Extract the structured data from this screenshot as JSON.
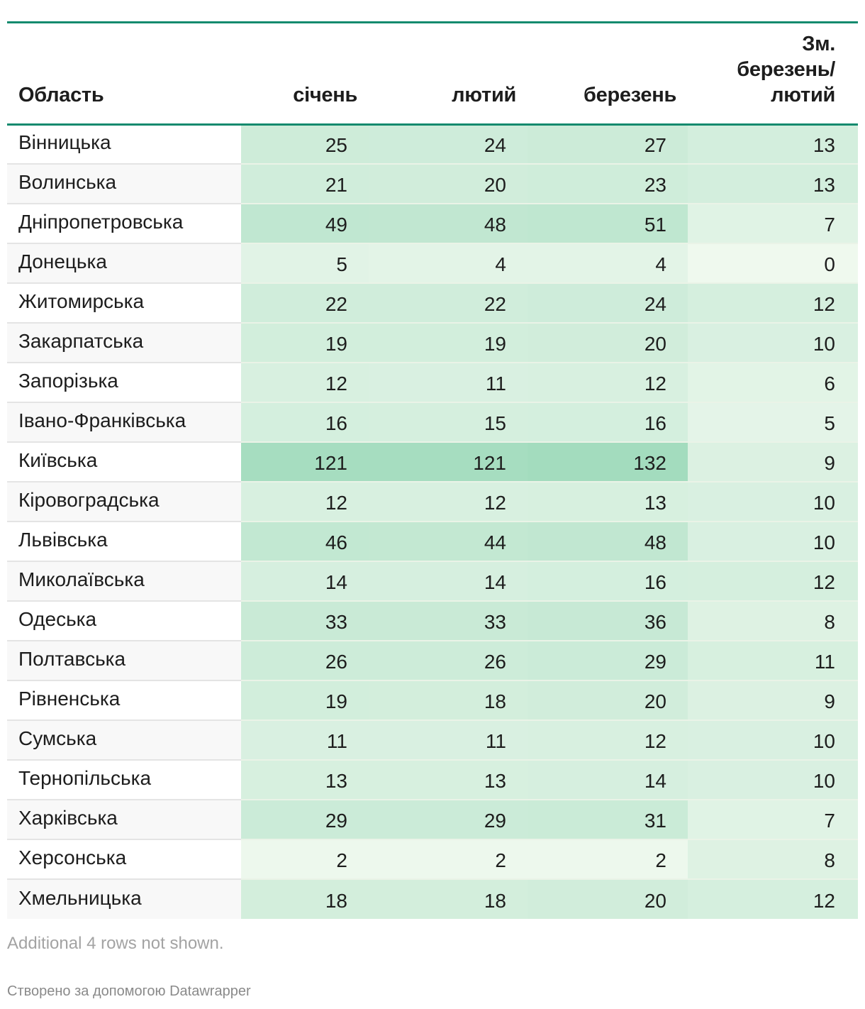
{
  "chart_data": {
    "type": "table",
    "headers": {
      "name": "Область",
      "jan": "січень",
      "feb": "лютий",
      "mar": "березень",
      "change_lines": [
        "Зм.",
        "березень/",
        "лютий"
      ]
    },
    "rows": [
      {
        "name": "Вінницька",
        "jan": "25",
        "feb": "24",
        "mar": "27",
        "change": "13"
      },
      {
        "name": "Волинська",
        "jan": "21",
        "feb": "20",
        "mar": "23",
        "change": "13"
      },
      {
        "name": "Дніпропетровська",
        "jan": "49",
        "feb": "48",
        "mar": "51",
        "change": "7"
      },
      {
        "name": "Донецька",
        "jan": "5",
        "feb": "4",
        "mar": "4",
        "change": "0"
      },
      {
        "name": "Житомирська",
        "jan": "22",
        "feb": "22",
        "mar": "24",
        "change": "12"
      },
      {
        "name": "Закарпатська",
        "jan": "19",
        "feb": "19",
        "mar": "20",
        "change": "10"
      },
      {
        "name": "Запорізька",
        "jan": "12",
        "feb": "11",
        "mar": "12",
        "change": "6"
      },
      {
        "name": "Івано-Франківська",
        "jan": "16",
        "feb": "15",
        "mar": "16",
        "change": "5"
      },
      {
        "name": "Київська",
        "jan": "121",
        "feb": "121",
        "mar": "132",
        "change": "9"
      },
      {
        "name": "Кіровоградська",
        "jan": "12",
        "feb": "12",
        "mar": "13",
        "change": "10"
      },
      {
        "name": "Львівська",
        "jan": "46",
        "feb": "44",
        "mar": "48",
        "change": "10"
      },
      {
        "name": "Миколаївська",
        "jan": "14",
        "feb": "14",
        "mar": "16",
        "change": "12"
      },
      {
        "name": "Одеська",
        "jan": "33",
        "feb": "33",
        "mar": "36",
        "change": "8"
      },
      {
        "name": "Полтавська",
        "jan": "26",
        "feb": "26",
        "mar": "29",
        "change": "11"
      },
      {
        "name": "Рівненська",
        "jan": "19",
        "feb": "18",
        "mar": "20",
        "change": "9"
      },
      {
        "name": "Сумська",
        "jan": "11",
        "feb": "11",
        "mar": "12",
        "change": "10"
      },
      {
        "name": "Тернопільська",
        "jan": "13",
        "feb": "13",
        "mar": "14",
        "change": "10"
      },
      {
        "name": "Харківська",
        "jan": "29",
        "feb": "29",
        "mar": "31",
        "change": "7"
      },
      {
        "name": "Херсонська",
        "jan": "2",
        "feb": "2",
        "mar": "2",
        "change": "8"
      },
      {
        "name": "Хмельницька",
        "jan": "18",
        "feb": "18",
        "mar": "20",
        "change": "12"
      }
    ],
    "notes": "Additional 4 rows not shown."
  },
  "footer": {
    "credit": "Створено за допомогою Datawrapper"
  },
  "colors": {
    "rule": "#138a6e",
    "heat_low": "#f3faf1",
    "heat_high": "#a3dcbe"
  }
}
